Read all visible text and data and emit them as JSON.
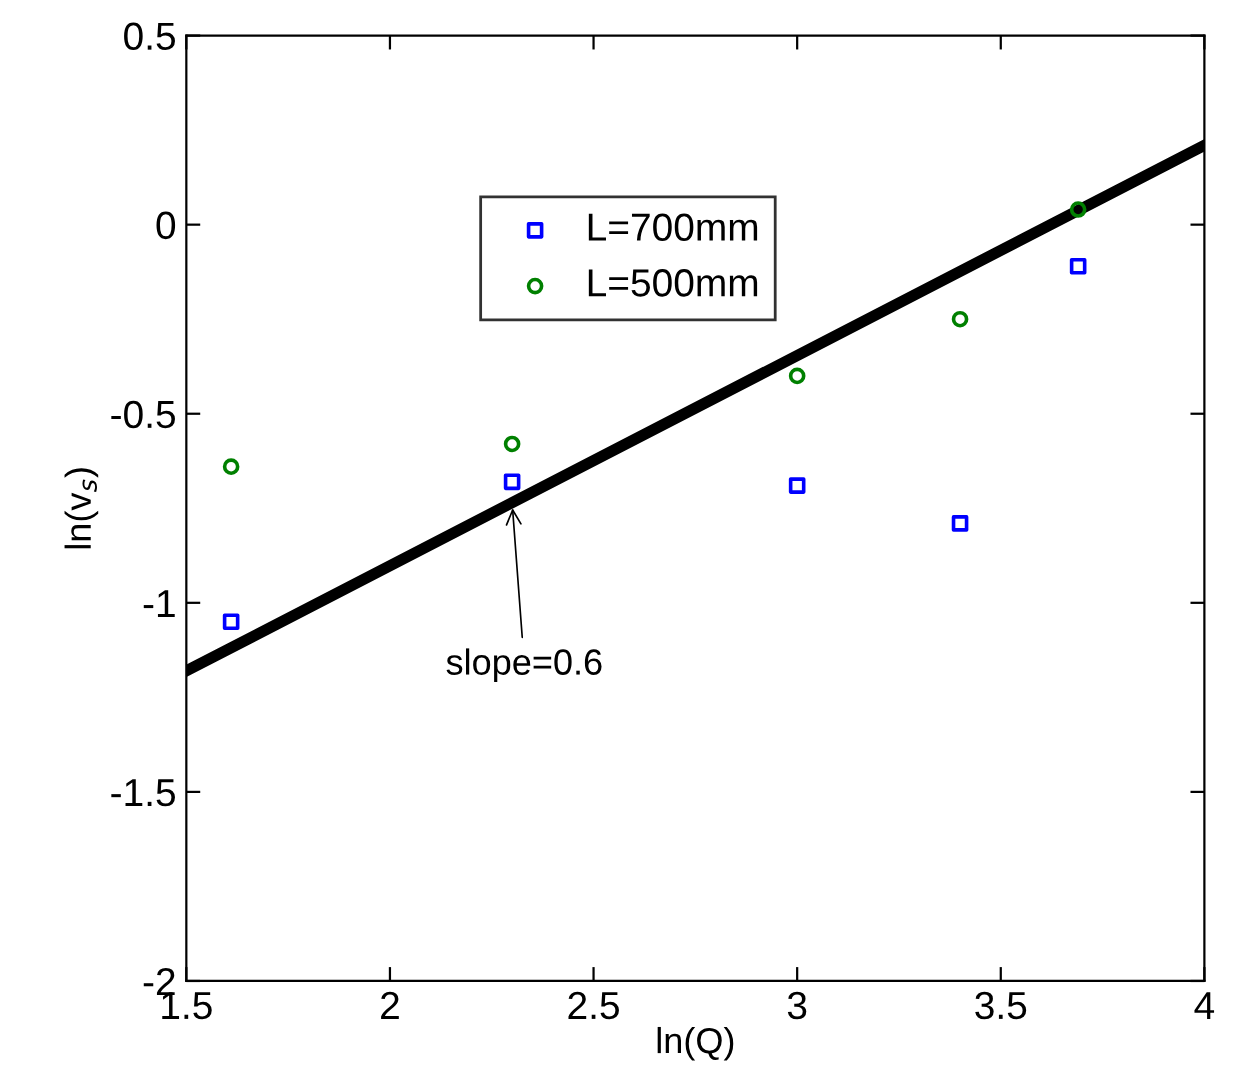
{
  "chart_data": {
    "type": "scatter",
    "xlabel": "ln(Q)",
    "ylabel": "ln(v$_{s}$)",
    "xlim": [
      1.5,
      4
    ],
    "ylim": [
      -2,
      0.5
    ],
    "xticks": [
      1.5,
      2,
      2.5,
      3,
      3.5,
      4
    ],
    "yticks": [
      {
        "value": -2,
        "label": "-2"
      },
      {
        "value": -1.5,
        "label": "-1.5"
      },
      {
        "value": -1,
        "label": "-1"
      },
      {
        "value": -0.5,
        "label": "-0.5"
      },
      0,
      0.5
    ],
    "grid": false,
    "legend": "top left",
    "series": [
      {
        "name": "L=700mm",
        "color": "#0000ff",
        "marker": "square",
        "x": [
          1.61,
          2.3,
          3.0,
          3.4,
          3.69
        ],
        "values": [
          -1.05,
          -0.68,
          -0.69,
          -0.79,
          -0.11
        ]
      },
      {
        "name": "L=500mm",
        "color": "#008000",
        "marker": "circle",
        "x": [
          1.61,
          2.3,
          3.0,
          3.4,
          3.69
        ],
        "values": [
          -0.64,
          -0.58,
          -0.4,
          -0.25,
          0.04
        ]
      },
      {
        "type": "line",
        "color": "#000000",
        "marker": "none",
        "x": [
          1.5,
          4
        ],
        "values": [
          -1.18,
          0.21
        ]
      }
    ],
    "annotations": [
      {
        "text": "slope=0.6",
        "x": 2.3,
        "y": -0.735
      }
    ]
  }
}
